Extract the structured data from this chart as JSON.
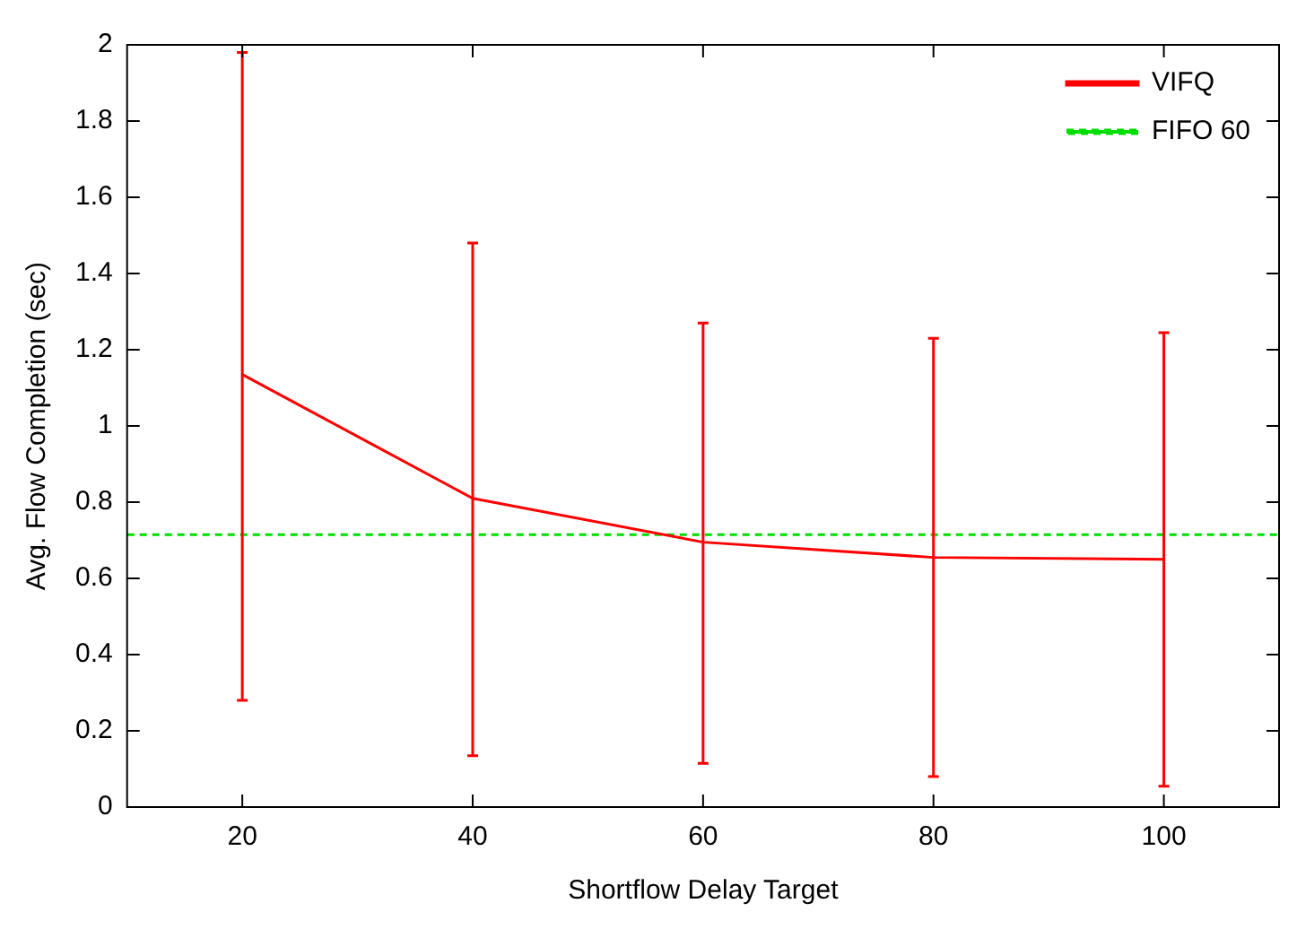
{
  "chart_data": {
    "type": "line",
    "xlabel": "Shortflow Delay Target",
    "ylabel": "Avg. Flow Completion (sec)",
    "x": [
      20,
      40,
      60,
      80,
      100
    ],
    "series": [
      {
        "name": "VIFQ",
        "color": "#ff0000",
        "values": [
          1.135,
          0.81,
          0.695,
          0.655,
          0.65
        ],
        "errors": [
          [
            0.28,
            1.98
          ],
          [
            0.135,
            1.48
          ],
          [
            0.115,
            1.27
          ],
          [
            0.08,
            1.23
          ],
          [
            0.055,
            1.245
          ]
        ]
      }
    ],
    "ref_lines": [
      {
        "axis": "y",
        "value": 0.715,
        "label": "FIFO 60",
        "color": "#00dd00",
        "line_style": "dashed"
      }
    ],
    "xlim": [
      10,
      110
    ],
    "xticks": [
      20,
      40,
      60,
      80,
      100
    ],
    "ylim": [
      0,
      2
    ],
    "yticks": [
      0,
      0.2,
      0.4,
      0.6,
      0.8,
      1,
      1.2,
      1.4,
      1.6,
      1.8,
      2
    ],
    "grid": false,
    "legend": "top right",
    "marker": "none",
    "line_style": "solid"
  }
}
